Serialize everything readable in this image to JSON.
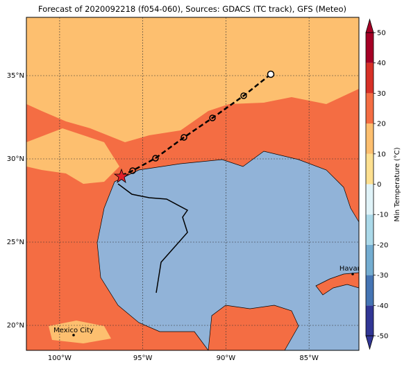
{
  "map": {
    "title": "Forecast of 2020092218 (f054-060), Sources: GDACS (TC track), GFS (Meteo)",
    "xlim": [
      -102,
      -82
    ],
    "ylim": [
      18.5,
      38.5
    ],
    "xticks": [
      {
        "value": -100,
        "label": "100°W"
      },
      {
        "value": -95,
        "label": "95°W"
      },
      {
        "value": -90,
        "label": "90°W"
      },
      {
        "value": -85,
        "label": "85°W"
      }
    ],
    "yticks": [
      {
        "value": 20,
        "label": "20°N"
      },
      {
        "value": 25,
        "label": "25°N"
      },
      {
        "value": 30,
        "label": "30°N"
      },
      {
        "value": 35,
        "label": "35°N"
      }
    ],
    "cities": [
      "Mexico City",
      "Havana"
    ],
    "colorbar": {
      "label": "Min Temperature (°C)",
      "lim": [
        -50,
        50
      ],
      "ticks": [
        -50,
        -40,
        -30,
        -20,
        -10,
        0,
        10,
        20,
        30,
        40,
        50
      ],
      "colors": [
        "#313695",
        "#4575b4",
        "#74add1",
        "#abd9e9",
        "#e0f3f8",
        "#fee090",
        "#fdbf6f",
        "#f46d43",
        "#d73027",
        "#a50026"
      ]
    }
  }
}
